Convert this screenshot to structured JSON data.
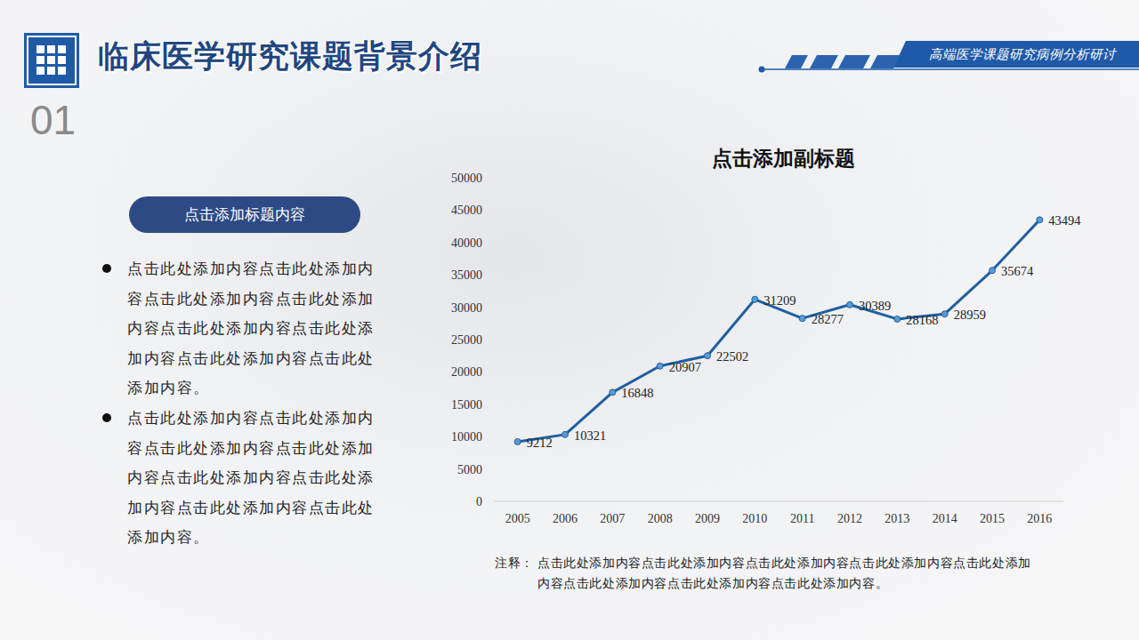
{
  "page": {
    "title": "临床医学研究课题背景介绍",
    "number": "01",
    "tagline": "高端医学课题研究病例分析研讨",
    "section_label": "点击添加标题内容",
    "bullets": [
      "点击此处添加内容点击此处添加内容点击此处添加内容点击此处添加内容点击此处添加内容点击此处添加内容点击此处添加内容点击此处添加内容。",
      "点击此处添加内容点击此处添加内容点击此处添加内容点击此处添加内容点击此处添加内容点击此处添加内容点击此处添加内容点击此处添加内容。"
    ],
    "note_label": "注释：",
    "note": "点击此处添加内容点击此处添加内容点击此处添加内容点击此处添加内容点击此处添加内容点击此处添加内容点击此处添加内容点击此处添加内容。"
  },
  "chart_data": {
    "type": "line",
    "title": "点击添加副标题",
    "categories": [
      "2005",
      "2006",
      "2007",
      "2008",
      "2009",
      "2010",
      "2011",
      "2012",
      "2013",
      "2014",
      "2015",
      "2016"
    ],
    "values": [
      9212,
      10321,
      16848,
      20907,
      22502,
      31209,
      28277,
      30389,
      28168,
      28959,
      35674,
      43494
    ],
    "color": "#1f5fa0",
    "marker": "circle",
    "ylim": [
      0,
      50000
    ],
    "yticks": [
      0,
      5000,
      10000,
      15000,
      20000,
      25000,
      30000,
      35000,
      40000,
      45000,
      50000
    ],
    "grid": false,
    "data_labels": true
  }
}
